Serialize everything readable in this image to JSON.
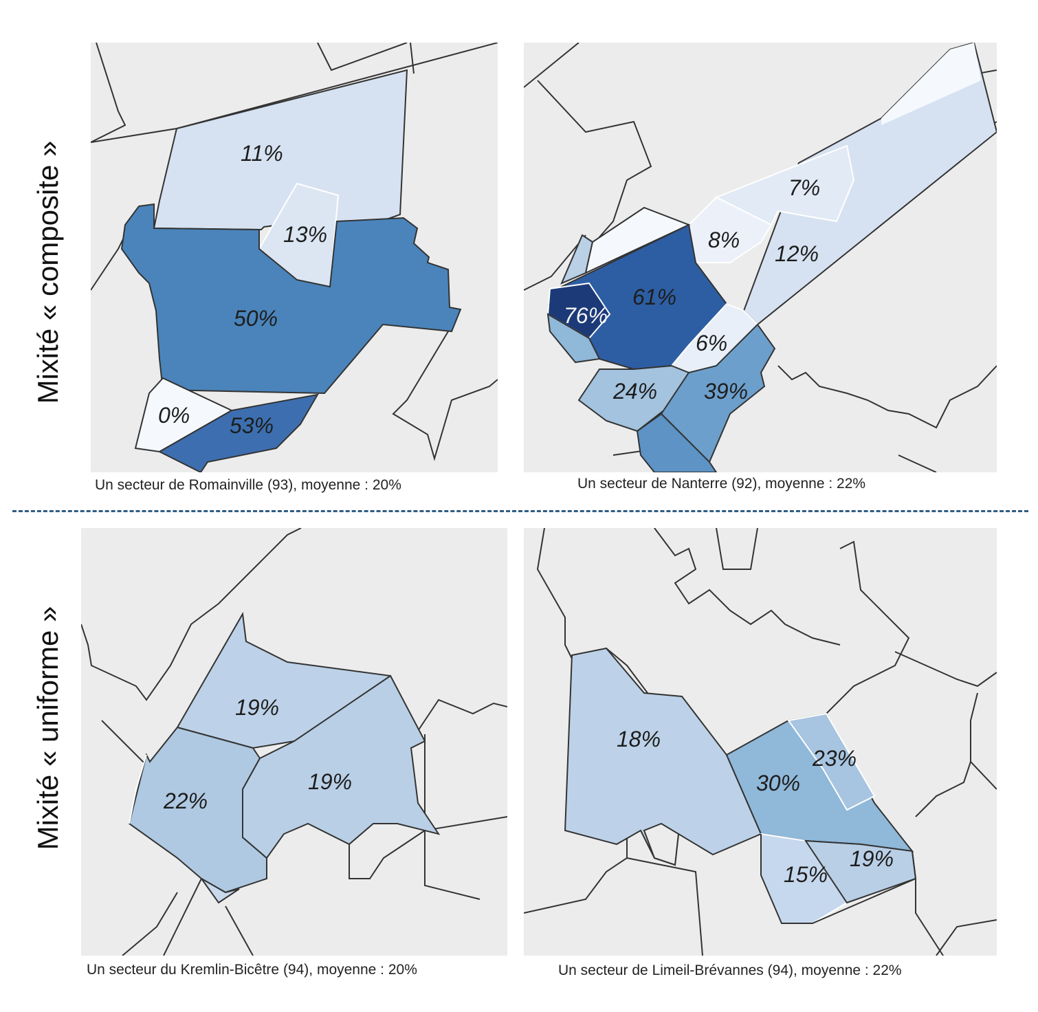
{
  "rows": [
    {
      "label": "Mixité « composite »"
    },
    {
      "label": "Mixité « uniforme »"
    }
  ],
  "panels": [
    {
      "caption": "Un secteur de Romainville (93), moyenne : 20%",
      "zones": [
        "11%",
        "13%",
        "50%",
        "0%",
        "53%"
      ]
    },
    {
      "caption": "Un secteur de Nanterre (92), moyenne : 22%",
      "zones": [
        "7%",
        "8%",
        "12%",
        "61%",
        "76%",
        "6%",
        "24%",
        "39%"
      ]
    },
    {
      "caption": "Un secteur du Kremlin-Bicêtre (94), moyenne : 20%",
      "zones": [
        "19%",
        "22%",
        "19%"
      ]
    },
    {
      "caption": "Un secteur de Limeil-Brévannes (94), moyenne : 22%",
      "zones": [
        "18%",
        "23%",
        "30%",
        "15%",
        "19%"
      ]
    }
  ],
  "colors": {
    "background": "#ececec",
    "boundary": "#333333",
    "divider": "#2f5d82",
    "scale_0": "#f5f9fe",
    "scale_10": "#d6e2f1",
    "scale_20": "#b9d0e6",
    "scale_30": "#8fb8d9",
    "scale_40": "#6c9fcb",
    "scale_50": "#4a84bb",
    "scale_60": "#2d5ea3",
    "scale_76": "#1c3a78"
  }
}
